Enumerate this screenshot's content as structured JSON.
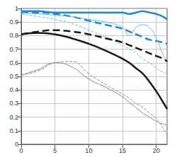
{
  "chart_data": {
    "type": "line",
    "x": [
      0,
      2.5,
      5,
      7.5,
      10,
      12.5,
      15,
      16,
      17,
      18,
      19,
      20,
      21,
      21.6
    ],
    "series": [
      {
        "color": "#1e88d8",
        "line_style": "solid",
        "values": [
          0.98,
          0.98,
          0.97,
          0.97,
          0.97,
          0.97,
          0.97,
          0.96,
          0.97,
          0.98,
          0.97,
          0.96,
          0.94,
          0.92
        ]
      },
      {
        "color": "#1e88d8",
        "line_style": "dashed",
        "values": [
          0.97,
          0.97,
          0.96,
          0.94,
          0.91,
          0.88,
          0.85,
          0.83,
          0.81,
          0.79,
          0.77,
          0.76,
          0.75,
          0.74
        ]
      },
      {
        "color": "#6ab8e8",
        "line_style": "solid",
        "values": [
          0.97,
          0.96,
          0.95,
          0.94,
          0.92,
          0.9,
          0.86,
          0.8,
          0.86,
          0.88,
          0.86,
          0.78,
          0.66,
          0.6
        ]
      },
      {
        "color": "#6ab8e8",
        "line_style": "dashed",
        "values": [
          0.96,
          0.94,
          0.92,
          0.89,
          0.84,
          0.79,
          0.73,
          0.7,
          0.67,
          0.63,
          0.6,
          0.56,
          0.53,
          0.52
        ]
      },
      {
        "color": "#1a1a1a",
        "line_style": "solid",
        "values": [
          0.81,
          0.82,
          0.81,
          0.78,
          0.74,
          0.69,
          0.63,
          0.6,
          0.56,
          0.52,
          0.46,
          0.39,
          0.31,
          0.26
        ]
      },
      {
        "color": "#1a1a1a",
        "line_style": "dashed",
        "values": [
          0.81,
          0.83,
          0.84,
          0.83,
          0.81,
          0.78,
          0.75,
          0.73,
          0.71,
          0.69,
          0.67,
          0.65,
          0.63,
          0.61
        ]
      },
      {
        "color": "#8a8a8a",
        "line_style": "solid",
        "values": [
          0.51,
          0.55,
          0.6,
          0.57,
          0.48,
          0.42,
          0.35,
          0.31,
          0.27,
          0.23,
          0.2,
          0.17,
          0.15,
          0.14
        ]
      },
      {
        "color": "#8a8a8a",
        "line_style": "dashed",
        "values": [
          0.51,
          0.54,
          0.6,
          0.61,
          0.52,
          0.44,
          0.37,
          0.34,
          0.3,
          0.27,
          0.23,
          0.19,
          0.12,
          0.07
        ]
      }
    ],
    "xlim": [
      0,
      21.6
    ],
    "xticks": [
      0,
      5,
      10,
      15,
      20
    ],
    "ylim": [
      0,
      1
    ],
    "yticks": [
      0,
      0.1,
      0.2,
      0.3,
      0.4,
      0.5,
      0.6,
      0.7,
      0.8,
      0.9,
      1
    ],
    "grid": true
  }
}
